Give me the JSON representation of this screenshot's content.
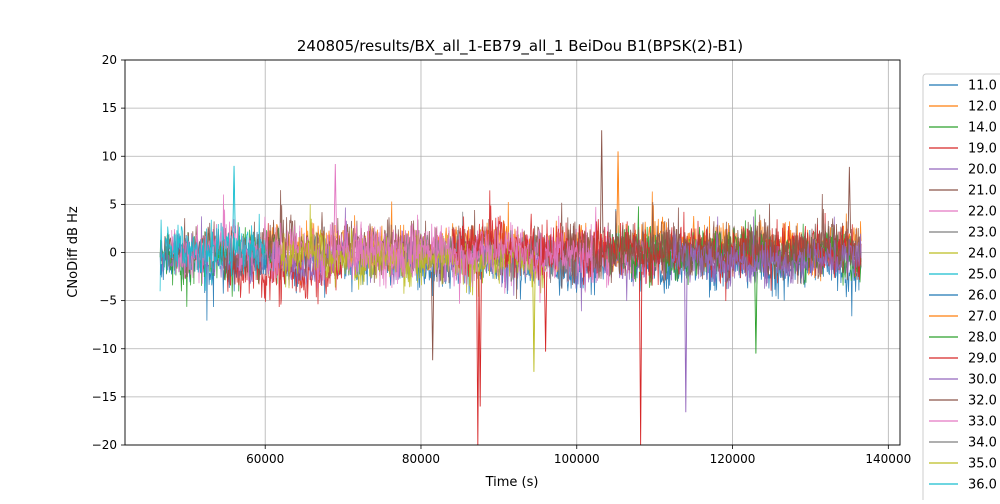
{
  "chart_data": {
    "type": "line",
    "title": "240805/results/BX_all_1-EB79_all_1 BeiDou B1(BPSK(2)-B1)",
    "xlabel": "Time (s)",
    "ylabel": "CNoDiff dB Hz",
    "xlim": [
      42000,
      141500
    ],
    "ylim": [
      -20,
      20
    ],
    "xticks": [
      60000,
      80000,
      100000,
      120000,
      140000
    ],
    "xtick_labels": [
      "60000",
      "80000",
      "100000",
      "120000",
      "140000"
    ],
    "yticks": [
      -20,
      -15,
      -10,
      -5,
      0,
      5,
      10,
      15,
      20
    ],
    "ytick_labels": [
      "−20",
      "−15",
      "−10",
      "−5",
      "0",
      "5",
      "10",
      "15",
      "20"
    ],
    "grid": true,
    "legend_placement": "outside-right",
    "series": [
      {
        "name": "11.0",
        "color": "#1f77b4"
      },
      {
        "name": "12.0",
        "color": "#ff7f0e"
      },
      {
        "name": "14.0",
        "color": "#2ca02c"
      },
      {
        "name": "19.0",
        "color": "#d62728"
      },
      {
        "name": "20.0",
        "color": "#9467bd"
      },
      {
        "name": "21.0",
        "color": "#8c564b"
      },
      {
        "name": "22.0",
        "color": "#e377c2"
      },
      {
        "name": "23.0",
        "color": "#7f7f7f"
      },
      {
        "name": "24.0",
        "color": "#bcbd22"
      },
      {
        "name": "25.0",
        "color": "#17becf"
      },
      {
        "name": "26.0",
        "color": "#1f77b4"
      },
      {
        "name": "27.0",
        "color": "#ff7f0e"
      },
      {
        "name": "28.0",
        "color": "#2ca02c"
      },
      {
        "name": "29.0",
        "color": "#d62728"
      },
      {
        "name": "30.0",
        "color": "#9467bd"
      },
      {
        "name": "32.0",
        "color": "#8c564b"
      },
      {
        "name": "33.0",
        "color": "#e377c2"
      },
      {
        "name": "34.0",
        "color": "#7f7f7f"
      },
      {
        "name": "35.0",
        "color": "#bcbd22"
      },
      {
        "name": "36.0",
        "color": "#17becf"
      }
    ],
    "trace_segments": [
      {
        "color": "#1f77b4",
        "x0": 46500,
        "x1": 136500,
        "mean": -1.0,
        "amp": 2.2
      },
      {
        "color": "#ff7f0e",
        "x0": 60000,
        "x1": 136500,
        "mean": 1.0,
        "amp": 2.0
      },
      {
        "color": "#2ca02c",
        "x0": 46500,
        "x1": 62000,
        "mean": 0.0,
        "amp": 2.6
      },
      {
        "color": "#d62728",
        "x0": 55000,
        "x1": 70000,
        "mean": -1.5,
        "amp": 2.6
      },
      {
        "color": "#9467bd",
        "x0": 46500,
        "x1": 136500,
        "mean": -0.5,
        "amp": 1.8
      },
      {
        "color": "#8c564b",
        "x0": 47000,
        "x1": 136500,
        "mean": 0.8,
        "amp": 2.4
      },
      {
        "color": "#e377c2",
        "x0": 48000,
        "x1": 110000,
        "mean": 0.3,
        "amp": 2.4
      },
      {
        "color": "#7f7f7f",
        "x0": 78000,
        "x1": 100000,
        "mean": 0.0,
        "amp": 2.0
      },
      {
        "color": "#bcbd22",
        "x0": 62000,
        "x1": 96000,
        "mean": -0.6,
        "amp": 2.2
      },
      {
        "color": "#17becf",
        "x0": 46500,
        "x1": 60000,
        "mean": 0.5,
        "amp": 2.4
      },
      {
        "color": "#2ca02c",
        "x0": 104000,
        "x1": 136500,
        "mean": 0.2,
        "amp": 2.4
      },
      {
        "color": "#d62728",
        "x0": 84000,
        "x1": 136500,
        "mean": 0.6,
        "amp": 2.4
      },
      {
        "color": "#8c564b",
        "x0": 98000,
        "x1": 136500,
        "mean": 0.4,
        "amp": 2.4
      },
      {
        "color": "#e377c2",
        "x0": 70000,
        "x1": 102000,
        "mean": 0.4,
        "amp": 2.2
      },
      {
        "color": "#9467bd",
        "x0": 112000,
        "x1": 136500,
        "mean": -0.5,
        "amp": 1.8
      }
    ],
    "spikes": [
      {
        "color": "#d62728",
        "x": 87300,
        "y": -20
      },
      {
        "color": "#d62728",
        "x": 87600,
        "y": -16
      },
      {
        "color": "#d62728",
        "x": 108200,
        "y": -20
      },
      {
        "color": "#8c564b",
        "x": 103200,
        "y": 12.7
      },
      {
        "color": "#9467bd",
        "x": 114000,
        "y": -16.6
      },
      {
        "color": "#bcbd22",
        "x": 94500,
        "y": -12.4
      },
      {
        "color": "#ff7f0e",
        "x": 105300,
        "y": 10.5
      },
      {
        "color": "#8c564b",
        "x": 81500,
        "y": -11.2
      },
      {
        "color": "#2ca02c",
        "x": 123000,
        "y": -10.5
      },
      {
        "color": "#e377c2",
        "x": 69000,
        "y": 9.2
      },
      {
        "color": "#17becf",
        "x": 56000,
        "y": 9.0
      },
      {
        "color": "#8c564b",
        "x": 135000,
        "y": 8.9
      },
      {
        "color": "#d62728",
        "x": 96000,
        "y": -10.3
      }
    ]
  }
}
